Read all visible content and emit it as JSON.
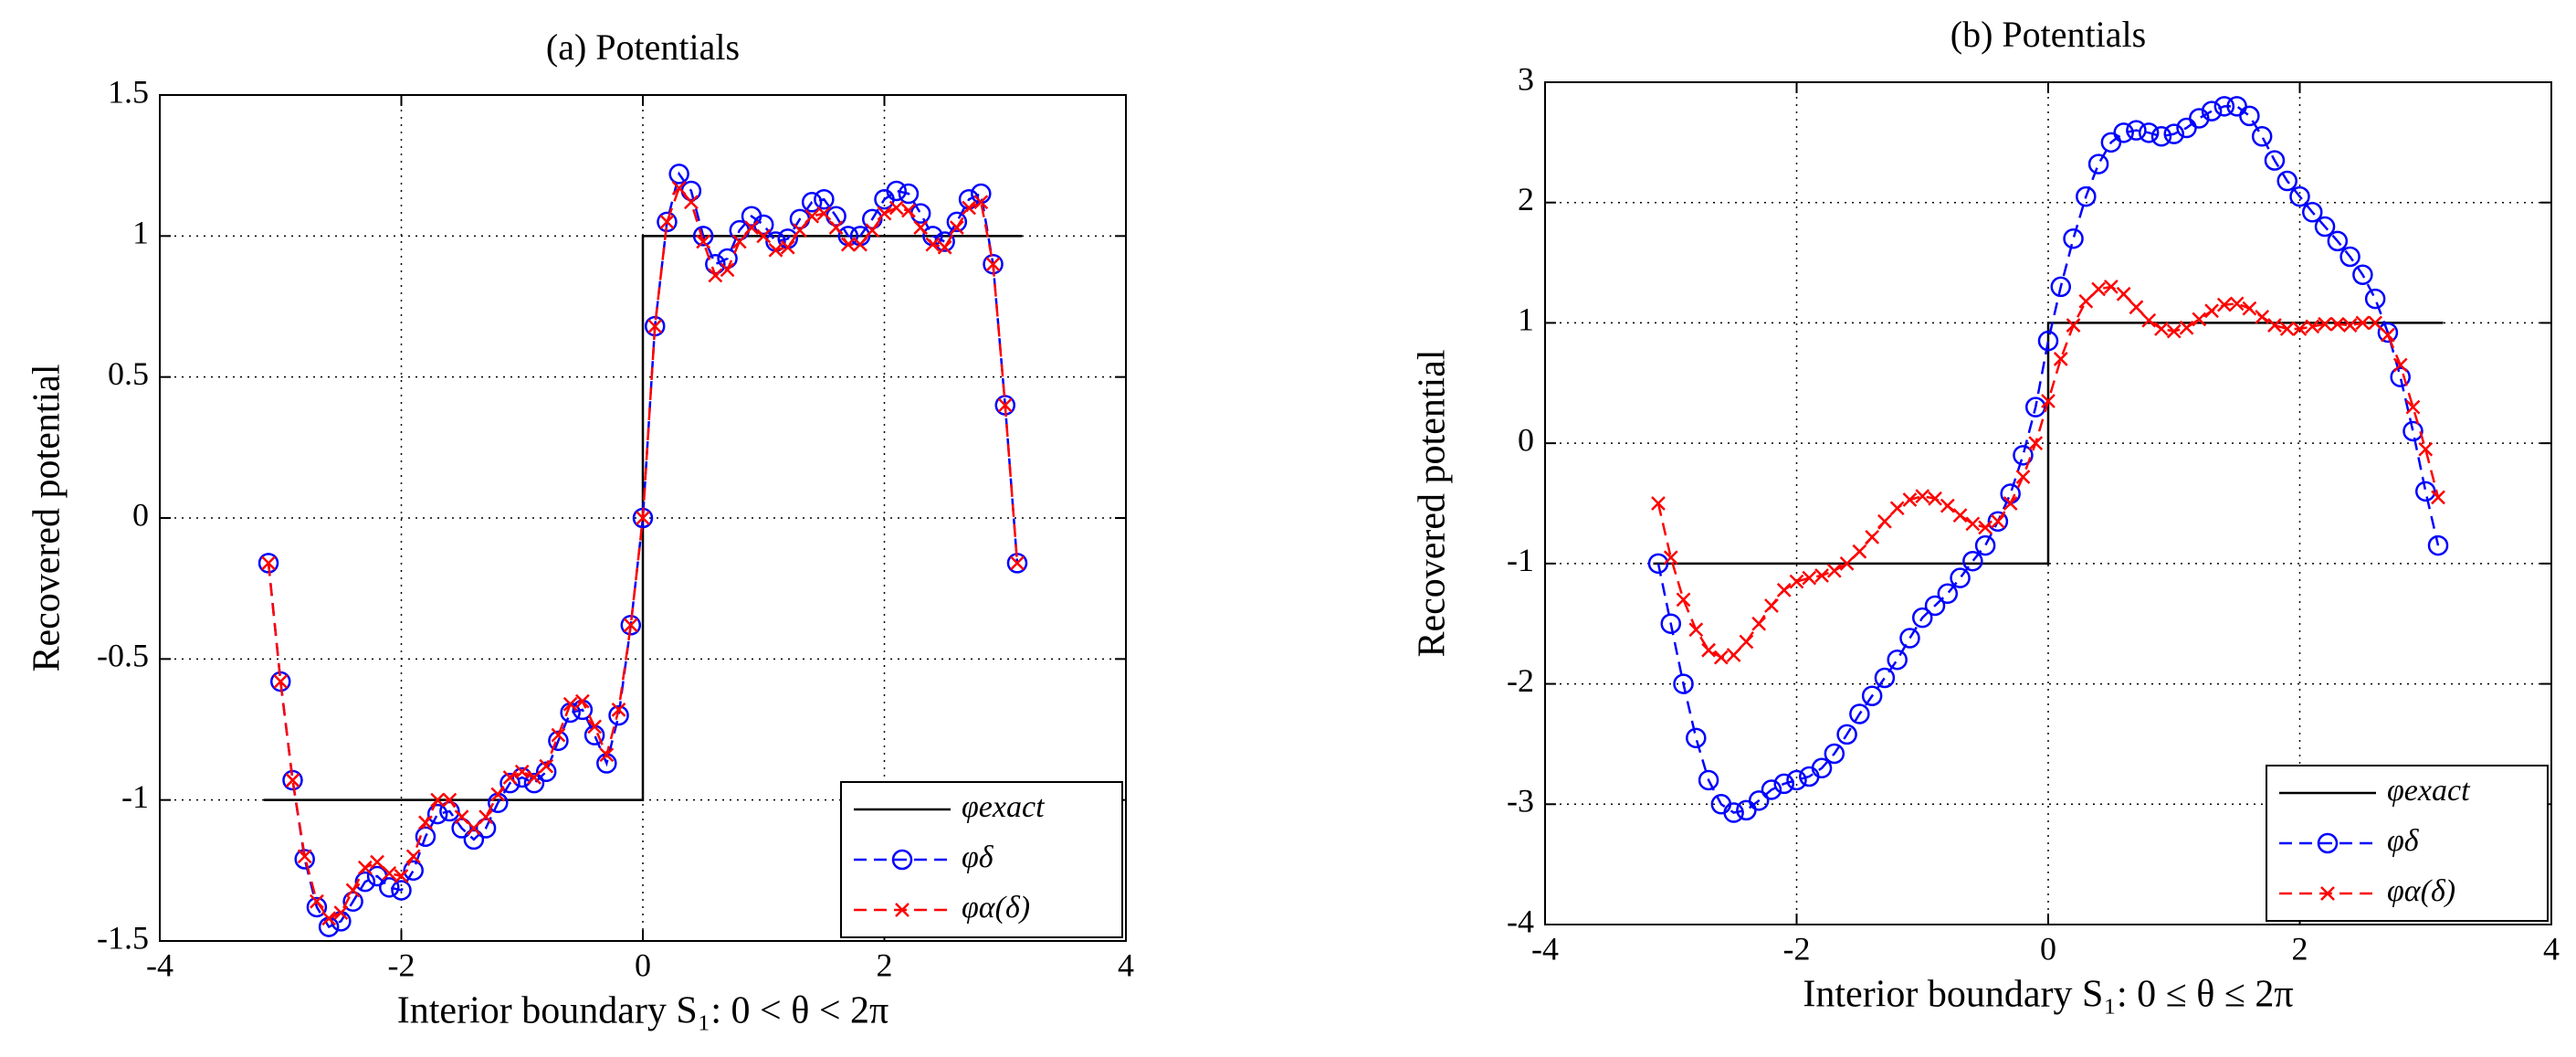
{
  "chart_data": [
    {
      "type": "line",
      "title": "(a) Potentials",
      "xlabel": "Interior boundary S₁: 0 < θ < 2π",
      "ylabel": "Recovered potential",
      "xlim": [
        -4,
        4
      ],
      "xticks": [
        -4,
        -2,
        0,
        2,
        4
      ],
      "ylim": [
        -1.5,
        1.5
      ],
      "yticks": [
        -1.5,
        -1,
        -0.5,
        0,
        0.5,
        1,
        1.5
      ],
      "grid": true,
      "legend": "lower right",
      "x": [
        -3.1,
        -3,
        -2.9,
        -2.8,
        -2.7,
        -2.6,
        -2.5,
        -2.4,
        -2.3,
        -2.2,
        -2.1,
        -2,
        -1.9,
        -1.8,
        -1.7,
        -1.6,
        -1.5,
        -1.4,
        -1.3,
        -1.2,
        -1.1,
        -1,
        -0.9,
        -0.8,
        -0.7,
        -0.6,
        -0.5,
        -0.4,
        -0.3,
        -0.2,
        -0.1,
        0,
        0.1,
        0.2,
        0.3,
        0.4,
        0.5,
        0.6,
        0.7,
        0.8,
        0.9,
        1,
        1.1,
        1.2,
        1.3,
        1.4,
        1.5,
        1.6,
        1.7,
        1.8,
        1.9,
        2,
        2.1,
        2.2,
        2.3,
        2.4,
        2.5,
        2.6,
        2.7,
        2.8,
        2.9,
        3,
        3.1
      ],
      "series": [
        {
          "name": "φexact",
          "color": "#000000",
          "marker": "none",
          "dashed": false,
          "x": [
            -3.14,
            0,
            0,
            3.14
          ],
          "values": [
            -1,
            -1,
            1,
            1
          ]
        },
        {
          "name": "φδ",
          "color": "#0000ff",
          "marker": "o",
          "dashed": true,
          "values": [
            -0.16,
            -0.58,
            -0.93,
            -1.21,
            -1.38,
            -1.45,
            -1.43,
            -1.36,
            -1.29,
            -1.27,
            -1.31,
            -1.32,
            -1.25,
            -1.13,
            -1.05,
            -1.04,
            -1.1,
            -1.14,
            -1.1,
            -1.01,
            -0.94,
            -0.92,
            -0.94,
            -0.9,
            -0.79,
            -0.69,
            -0.68,
            -0.77,
            -0.87,
            -0.7,
            -0.38,
            0,
            0.68,
            1.05,
            1.22,
            1.16,
            1,
            0.9,
            0.92,
            1.02,
            1.07,
            1.04,
            0.98,
            0.99,
            1.06,
            1.12,
            1.13,
            1.07,
            1,
            1,
            1.06,
            1.13,
            1.16,
            1.15,
            1.08,
            1,
            0.98,
            1.05,
            1.13,
            1.15,
            0.9,
            0.4,
            -0.16
          ]
        },
        {
          "name": "φα(δ)",
          "color": "#ff0000",
          "marker": "x",
          "dashed": true,
          "values": [
            -0.16,
            -0.58,
            -0.93,
            -1.2,
            -1.36,
            -1.42,
            -1.4,
            -1.32,
            -1.24,
            -1.22,
            -1.26,
            -1.27,
            -1.2,
            -1.08,
            -1,
            -1,
            -1.06,
            -1.1,
            -1.06,
            -0.98,
            -0.92,
            -0.9,
            -0.92,
            -0.88,
            -0.77,
            -0.66,
            -0.65,
            -0.74,
            -0.84,
            -0.68,
            -0.38,
            0,
            0.68,
            1.05,
            1.17,
            1.12,
            0.98,
            0.86,
            0.88,
            0.98,
            1.03,
            1,
            0.95,
            0.96,
            1.02,
            1.07,
            1.08,
            1.03,
            0.97,
            0.97,
            1.02,
            1.08,
            1.1,
            1.09,
            1.03,
            0.97,
            0.96,
            1.03,
            1.1,
            1.12,
            0.9,
            0.4,
            -0.16
          ]
        }
      ]
    },
    {
      "type": "line",
      "title": "(b) Potentials",
      "xlabel": "Interior boundary S₁: 0 ≤ θ ≤ 2π",
      "ylabel": "Recovered potential",
      "xlim": [
        -4,
        4
      ],
      "xticks": [
        -4,
        -2,
        0,
        2,
        4
      ],
      "ylim": [
        -4,
        3
      ],
      "yticks": [
        -4,
        -3,
        -2,
        -1,
        0,
        1,
        2,
        3
      ],
      "grid": true,
      "legend": "lower right",
      "x": [
        -3.1,
        -3,
        -2.9,
        -2.8,
        -2.7,
        -2.6,
        -2.5,
        -2.4,
        -2.3,
        -2.2,
        -2.1,
        -2,
        -1.9,
        -1.8,
        -1.7,
        -1.6,
        -1.5,
        -1.4,
        -1.3,
        -1.2,
        -1.1,
        -1,
        -0.9,
        -0.8,
        -0.7,
        -0.6,
        -0.5,
        -0.4,
        -0.3,
        -0.2,
        -0.1,
        0,
        0.1,
        0.2,
        0.3,
        0.4,
        0.5,
        0.6,
        0.7,
        0.8,
        0.9,
        1,
        1.1,
        1.2,
        1.3,
        1.4,
        1.5,
        1.6,
        1.7,
        1.8,
        1.9,
        2,
        2.1,
        2.2,
        2.3,
        2.4,
        2.5,
        2.6,
        2.7,
        2.8,
        2.9,
        3,
        3.1
      ],
      "series": [
        {
          "name": "φexact",
          "color": "#000000",
          "marker": "none",
          "dashed": false,
          "x": [
            -3.14,
            0,
            0,
            3.14
          ],
          "values": [
            -1,
            -1,
            1,
            1
          ]
        },
        {
          "name": "φδ",
          "color": "#0000ff",
          "marker": "o",
          "dashed": true,
          "values": [
            -1,
            -1.5,
            -2,
            -2.45,
            -2.8,
            -3,
            -3.07,
            -3.05,
            -2.97,
            -2.88,
            -2.83,
            -2.8,
            -2.77,
            -2.7,
            -2.58,
            -2.42,
            -2.25,
            -2.1,
            -1.95,
            -1.8,
            -1.62,
            -1.45,
            -1.35,
            -1.25,
            -1.12,
            -0.98,
            -0.85,
            -0.65,
            -0.42,
            -0.1,
            0.3,
            0.85,
            1.3,
            1.7,
            2.05,
            2.32,
            2.5,
            2.58,
            2.6,
            2.58,
            2.55,
            2.57,
            2.62,
            2.7,
            2.76,
            2.8,
            2.8,
            2.72,
            2.55,
            2.35,
            2.18,
            2.05,
            1.92,
            1.8,
            1.68,
            1.55,
            1.4,
            1.2,
            0.92,
            0.55,
            0.1,
            -0.4,
            -0.85
          ]
        },
        {
          "name": "φα(δ)",
          "color": "#ff0000",
          "marker": "x",
          "dashed": true,
          "values": [
            -0.5,
            -0.95,
            -1.3,
            -1.55,
            -1.72,
            -1.78,
            -1.76,
            -1.65,
            -1.5,
            -1.35,
            -1.22,
            -1.15,
            -1.12,
            -1.1,
            -1.06,
            -1,
            -0.9,
            -0.78,
            -0.65,
            -0.54,
            -0.47,
            -0.44,
            -0.46,
            -0.52,
            -0.6,
            -0.67,
            -0.7,
            -0.65,
            -0.5,
            -0.28,
            0,
            0.35,
            0.7,
            0.98,
            1.18,
            1.28,
            1.3,
            1.24,
            1.13,
            1.02,
            0.95,
            0.93,
            0.96,
            1.03,
            1.1,
            1.15,
            1.16,
            1.12,
            1.05,
            0.98,
            0.95,
            0.95,
            0.97,
            0.99,
            0.99,
            0.98,
            1,
            1,
            0.9,
            0.65,
            0.3,
            -0.05,
            -0.45
          ]
        }
      ]
    }
  ]
}
